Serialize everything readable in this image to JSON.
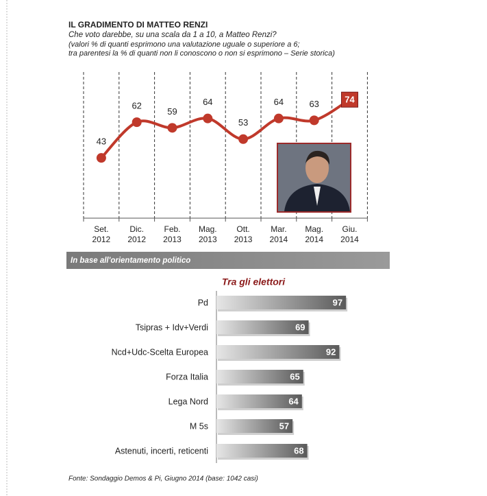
{
  "chart_data": [
    {
      "type": "line",
      "title": "IL GRADIMENTO DI MATTEO RENZI",
      "subtitle": "Che voto darebbe, su una scala da 1 a 10, a Matteo Renzi?",
      "notes": [
        "(valori % di quanti esprimono una valutazione uguale o superiore a 6;",
        "tra parentesi la % di quanti non li conoscono o non si esprimono – Serie storica)"
      ],
      "categories": [
        "Set.\n2012",
        "Dic.\n2012",
        "Feb.\n2013",
        "Mag.\n2013",
        "Ott.\n2013",
        "Mar.\n2014",
        "Mag.\n2014",
        "Giu.\n2014"
      ],
      "values": [
        43,
        62,
        59,
        64,
        53,
        64,
        63,
        74
      ],
      "color": "#c0392b"
    },
    {
      "type": "bar",
      "header": "In base all'orientamento politico",
      "title": "Tra gli elettori",
      "categories": [
        "Pd",
        "Tsipras + Idv+Verdi",
        "Ncd+Udc-Scelta Europea",
        "Forza Italia",
        "Lega Nord",
        "M 5s",
        "Astenuti, incerti, reticenti"
      ],
      "values": [
        97,
        69,
        92,
        65,
        64,
        57,
        68
      ],
      "orientation": "horizontal",
      "source": "Fonte: Sondaggio Demos & Pi, Giugno 2014 (base: 1042 casi)"
    }
  ]
}
